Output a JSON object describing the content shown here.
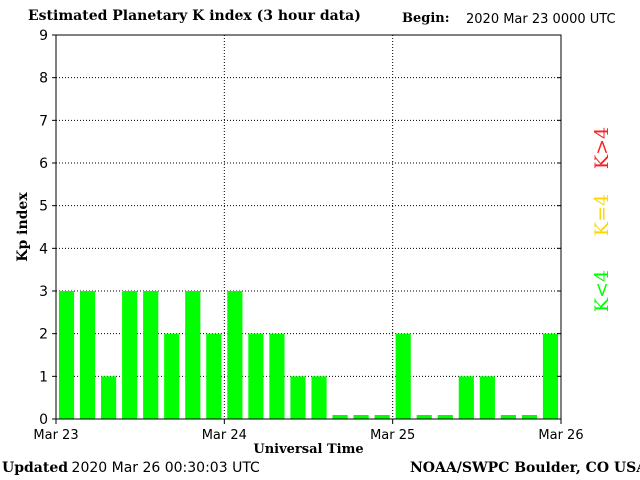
{
  "header": {
    "title": "Estimated Planetary K index (3 hour data)",
    "begin_label": "Begin:",
    "begin_value": "2020 Mar 23 0000 UTC"
  },
  "footer": {
    "updated_label": "Updated",
    "updated_value": "2020 Mar 26 00:30:03 UTC",
    "credit": "NOAA/SWPC Boulder, CO USA"
  },
  "chart_data": {
    "type": "bar",
    "title": "Estimated Planetary K index (3 hour data)",
    "xlabel": "Universal Time",
    "ylabel": "Kp index",
    "ylim": [
      0,
      9
    ],
    "yticks": [
      "0",
      "1",
      "2",
      "3",
      "4",
      "5",
      "6",
      "7",
      "8",
      "9"
    ],
    "xticks": [
      "Mar 23",
      "Mar 24",
      "Mar 25",
      "Mar 26"
    ],
    "grid": true,
    "bar_interval_hours": 3,
    "values": [
      3,
      3,
      1,
      3,
      3,
      2,
      3,
      2,
      3,
      2,
      2,
      1,
      1,
      0,
      0,
      0,
      2,
      0,
      0,
      1,
      1,
      0,
      0,
      2
    ],
    "colors": {
      "below4": "#00ff00",
      "equal4": "#ffd700",
      "above4": "#ff2020"
    },
    "legend": [
      {
        "label": "K<4",
        "color": "#00ff00"
      },
      {
        "label": "K=4",
        "color": "#ffd700"
      },
      {
        "label": "K>4",
        "color": "#ff2020"
      }
    ],
    "legend_position": "right"
  }
}
